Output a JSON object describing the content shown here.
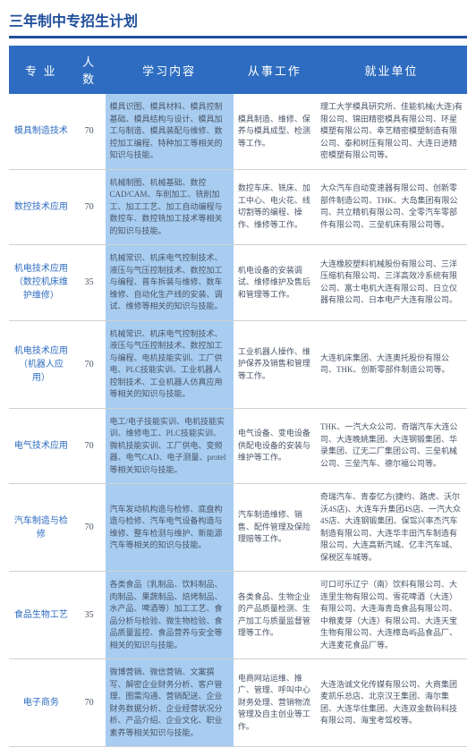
{
  "title": "三年制中专招生计划",
  "colors": {
    "header_bg": "#2d6cc0",
    "header_text": "#ffffff",
    "title_color": "#1f4e9c",
    "cell_blue_bg": "#a8cdf0",
    "border_color": "#d0d0d0",
    "text_color": "#4a5568"
  },
  "columns": [
    "专  业",
    "人数",
    "学习内容",
    "从事工作",
    "就业单位"
  ],
  "rows": [
    {
      "major": "模具制造技术",
      "num": "70",
      "study": "模具识图、模具材料、模具控制基础、模具结构与设计、模具加工与制造、模具装配与维修、数控加工编程、特种加工等相关的知识与技能。",
      "work": "模具制造、维修、保养与模具成型、检测等工作。",
      "company": "理工大学模具研究所、佳能机械(大连)有限公司、锦田精密模具有限公司、环星模塑有限公司、幸艺精密模塑制造有限公司、泰和树压有限公司、大连日进精密模塑有限公司等。"
    },
    {
      "major": "数控技术应用",
      "num": "70",
      "study": "机械制图、机械基础、数控CAD/CAM、车削加工、铣削加工、加工工艺、加工自动编程与数控车、数控铣加工技术等相关的知识与技能。",
      "work": "数控车床、铣床、加工中心、电火花、线切割等的编程、操作、维修等工作。",
      "company": "大众汽车自动变速器有限公司、创新零部件制造公司、THK、大岛集团有限公司、共立精机有限公司、全零汽车零部件有限公司、三垒机床有限公司等。"
    },
    {
      "major": "机电技术应用（数控机床维护维修）",
      "num": "35",
      "study": "机械常识、机床电气控制技术、液压与气压控制技术、数控加工与编程、普车拆装与维修、数车维修、自动化生产线的安装、调试、维修等相关的知识与技能。",
      "work": "机电设备的安装调试、维修维护及售后和管理等工作。",
      "company": "大连橡胶塑料机械股份有限公司、三洋压缩机有限公司、三洋高效冷系统有限公司、富士电机大连有限公司、日立仪器有限公司、日本电产大连有限公司。"
    },
    {
      "major": "机电技术应用（机器人应用）",
      "num": "70",
      "study": "机械常识、机床电气控制技术、液压与气压控制技术、数控加工与编程、电机技能实训、工厂供电、PLC技能实训、工业机器人控制技术、工业机器人仿真应用等相关的知识与技能。",
      "work": "工业机器人操作、维护保养及销售和管理等工作。",
      "company": "大连机床集团、大连奥托股份有限公司、THK、创新零部件制造公司等。"
    },
    {
      "major": "电气技术应用",
      "num": "70",
      "study": "电工/电子技能实训、电机技能实训、维修电工、PLC技能实训、微机技能实训、工厂供电、变频器、电气CAD、电子测量、protel等相关知识与技能。",
      "work": "电气设备、变电设备供配电设备的安装与维护等工作。",
      "company": "THK、一汽大众公司、奇瑞汽车大连公司、大连晚姚集团、大连钢锻集团、华录集团、辽无二厂集团公司、三垒机械公司、三垒汽车、德尔福公司等。"
    },
    {
      "major": "汽车制造与检修",
      "num": "70",
      "study": "汽车发动机构造与检修、底盘构造与检修、汽车电气设备构造与维修、整车检测与维护、新能源汽车等相关的知识与技能。",
      "work": "汽车制造维修、销售、配件管理及保险理赔等工作。",
      "company": "奇瑞汽车、青泰忆方(捷约、路虎、沃尔沃4S店)、大连车升集团4S店、一汽大众4S店、大连钢锻集团、保驾兴率杰汽车制造有限公司、大连华丰田汽车制造有限公司、大连高新汽城、亿丰汽车城、保税区车城等。"
    },
    {
      "major": "食品生物工艺",
      "num": "35",
      "study": "各类食品（乳制品、饮料制品、肉制品、果蔬制品、焙烤制品、水产品、啤酒等）加工工艺、食品分析与检验、微生物检验、食品质量监控、食品营养与安全等相关的知识与技能。",
      "work": "各类食品、生物企业的产品质量检测、生产加工与质量监督管理等工作。",
      "company": "可口可乐辽宁（南）饮料有限公司、大连里生物有限公司、雪花啤酒（大连）有限公司、大连海青岛食品有限公司、中粮麦芽（大连）有限公司、大连天宝生物有限公司、大连樟岛屿品食品厂、大连麦花食品厂等。"
    },
    {
      "major": "电子商务",
      "num": "70",
      "study": "微博营销、微信营销、文案撰写、解密企业财务分析、客户管理、图需沟通、营销配送、企业财务数据分析、企业经营状况分析、产品介绍、企业文化、职业素养等相关知识与技能。",
      "work": "电商网站运维、推广、管理、呼叫中心财务处理、营销物流管理及自主创业等工作。",
      "company": "大连浩诚文化传媒有限公司、大商集团麦凯乐总店、北京汉王集团、海尔集团、大连华住集团、大连双金数码科技有限公司、海宝考驾校等。"
    }
  ]
}
